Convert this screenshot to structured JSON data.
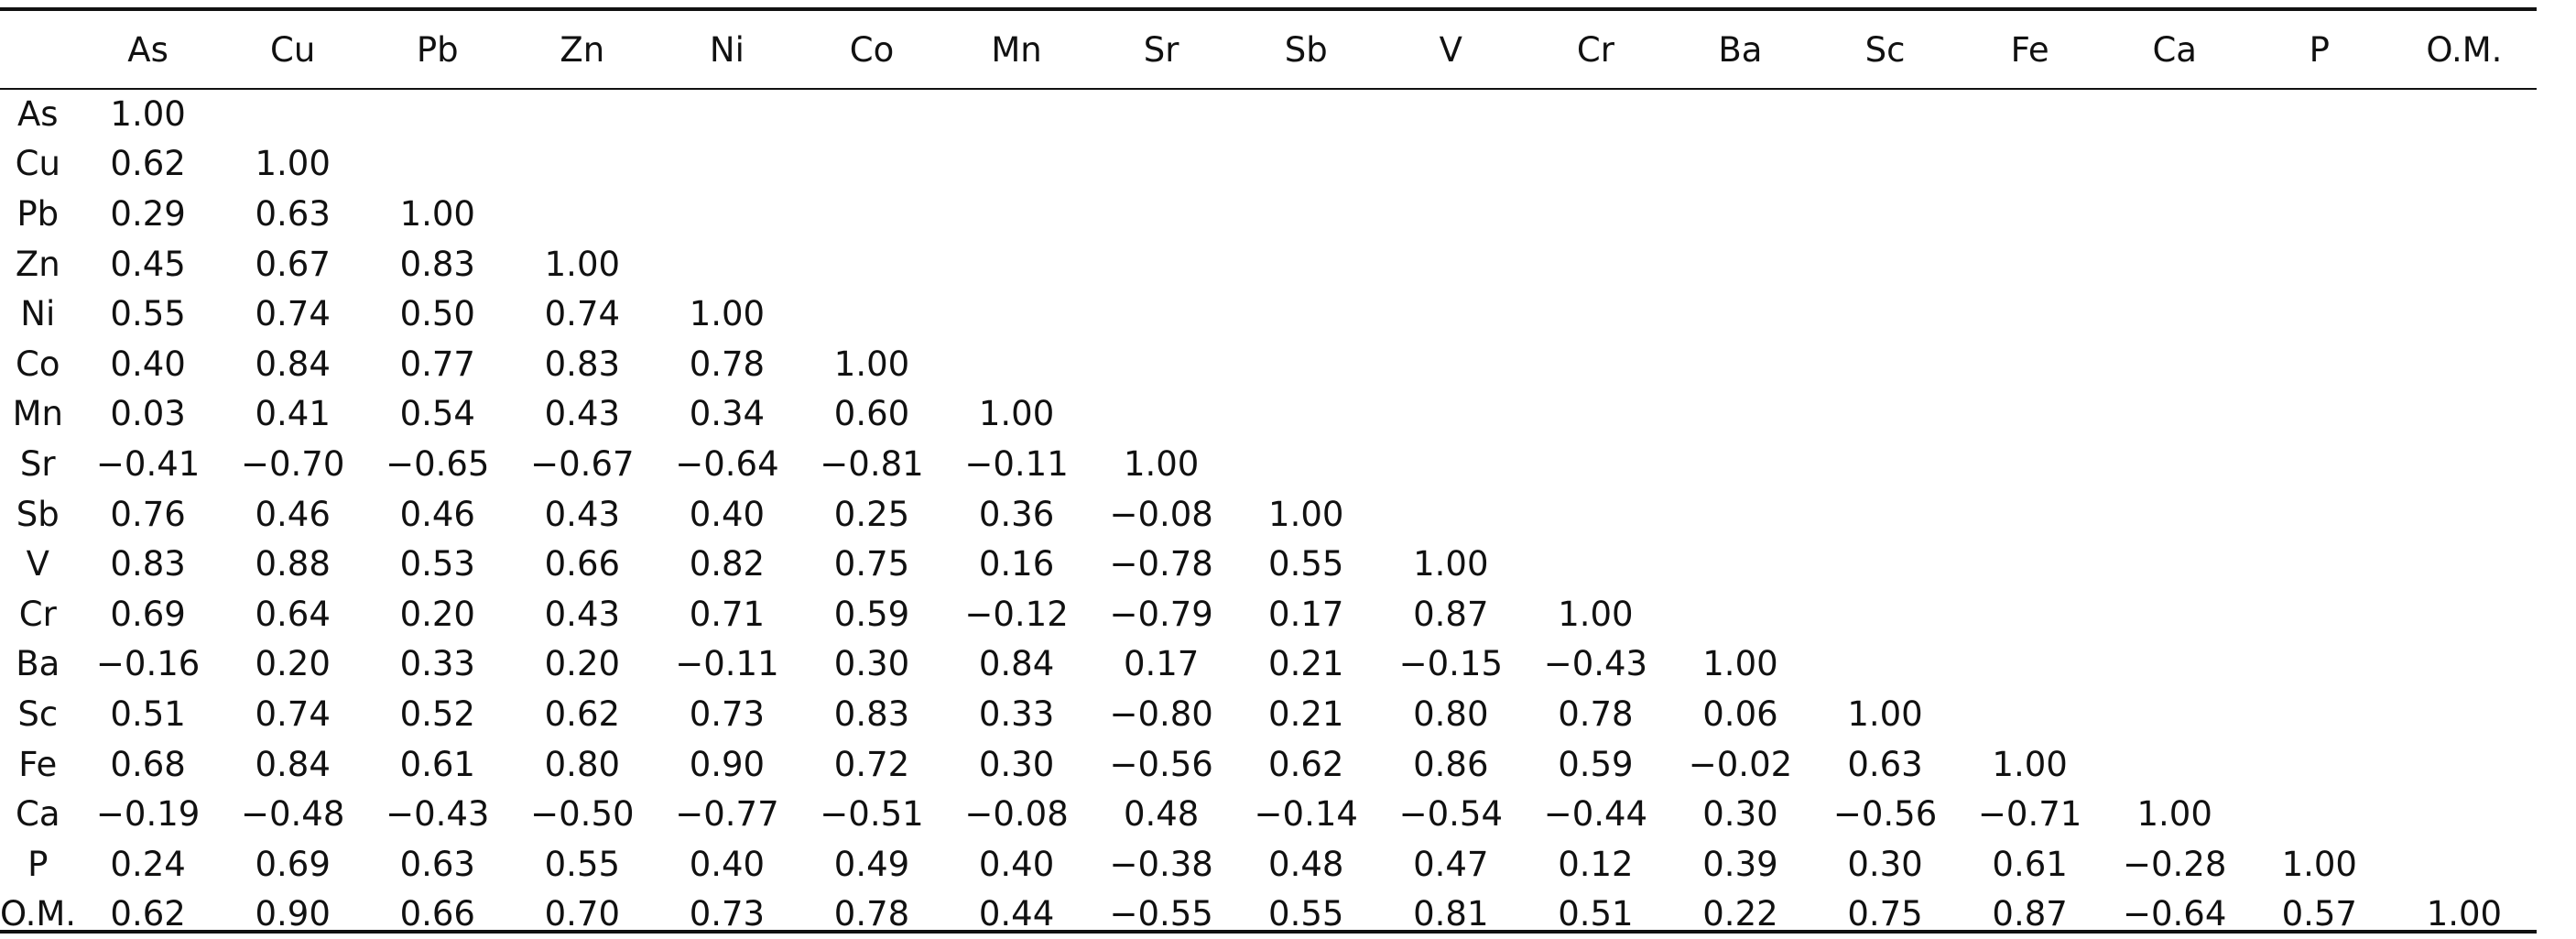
{
  "columns": [
    "As",
    "Cu",
    "Pb",
    "Zn",
    "Ni",
    "Co",
    "Mn",
    "Sr",
    "Sb",
    "V",
    "Cr",
    "Ba",
    "Sc",
    "Fe",
    "Ca",
    "P",
    "O.M."
  ],
  "rows": [
    {
      "label": "As",
      "values": [
        "1.00"
      ]
    },
    {
      "label": "Cu",
      "values": [
        "0.62",
        "1.00"
      ]
    },
    {
      "label": "Pb",
      "values": [
        "0.29",
        "0.63",
        "1.00"
      ]
    },
    {
      "label": "Zn",
      "values": [
        "0.45",
        "0.67",
        "0.83",
        "1.00"
      ]
    },
    {
      "label": "Ni",
      "values": [
        "0.55",
        "0.74",
        "0.50",
        "0.74",
        "1.00"
      ]
    },
    {
      "label": "Co",
      "values": [
        "0.40",
        "0.84",
        "0.77",
        "0.83",
        "0.78",
        "1.00"
      ]
    },
    {
      "label": "Mn",
      "values": [
        "0.03",
        "0.41",
        "0.54",
        "0.43",
        "0.34",
        "0.60",
        "1.00"
      ]
    },
    {
      "label": "Sr",
      "values": [
        "−0.41",
        "−0.70",
        "−0.65",
        "−0.67",
        "−0.64",
        "−0.81",
        "−0.11",
        "1.00"
      ]
    },
    {
      "label": "Sb",
      "values": [
        "0.76",
        "0.46",
        "0.46",
        "0.43",
        "0.40",
        "0.25",
        "0.36",
        "−0.08",
        "1.00"
      ]
    },
    {
      "label": "V",
      "values": [
        "0.83",
        "0.88",
        "0.53",
        "0.66",
        "0.82",
        "0.75",
        "0.16",
        "−0.78",
        "0.55",
        "1.00"
      ]
    },
    {
      "label": "Cr",
      "values": [
        "0.69",
        "0.64",
        "0.20",
        "0.43",
        "0.71",
        "0.59",
        "−0.12",
        "−0.79",
        "0.17",
        "0.87",
        "1.00"
      ]
    },
    {
      "label": "Ba",
      "values": [
        "−0.16",
        "0.20",
        "0.33",
        "0.20",
        "−0.11",
        "0.30",
        "0.84",
        "0.17",
        "0.21",
        "−0.15",
        "−0.43",
        "1.00"
      ]
    },
    {
      "label": "Sc",
      "values": [
        "0.51",
        "0.74",
        "0.52",
        "0.62",
        "0.73",
        "0.83",
        "0.33",
        "−0.80",
        "0.21",
        "0.80",
        "0.78",
        "0.06",
        "1.00"
      ]
    },
    {
      "label": "Fe",
      "values": [
        "0.68",
        "0.84",
        "0.61",
        "0.80",
        "0.90",
        "0.72",
        "0.30",
        "−0.56",
        "0.62",
        "0.86",
        "0.59",
        "−0.02",
        "0.63",
        "1.00"
      ]
    },
    {
      "label": "Ca",
      "values": [
        "−0.19",
        "−0.48",
        "−0.43",
        "−0.50",
        "−0.77",
        "−0.51",
        "−0.08",
        "0.48",
        "−0.14",
        "−0.54",
        "−0.44",
        "0.30",
        "−0.56",
        "−0.71",
        "1.00"
      ]
    },
    {
      "label": "P",
      "values": [
        "0.24",
        "0.69",
        "0.63",
        "0.55",
        "0.40",
        "0.49",
        "0.40",
        "−0.38",
        "0.48",
        "0.47",
        "0.12",
        "0.39",
        "0.30",
        "0.61",
        "−0.28",
        "1.00"
      ]
    },
    {
      "label": "O.M.",
      "values": [
        "0.62",
        "0.90",
        "0.66",
        "0.70",
        "0.73",
        "0.78",
        "0.44",
        "−0.55",
        "0.55",
        "0.81",
        "0.51",
        "0.22",
        "0.75",
        "0.87",
        "−0.64",
        "0.57",
        "1.00"
      ]
    }
  ]
}
